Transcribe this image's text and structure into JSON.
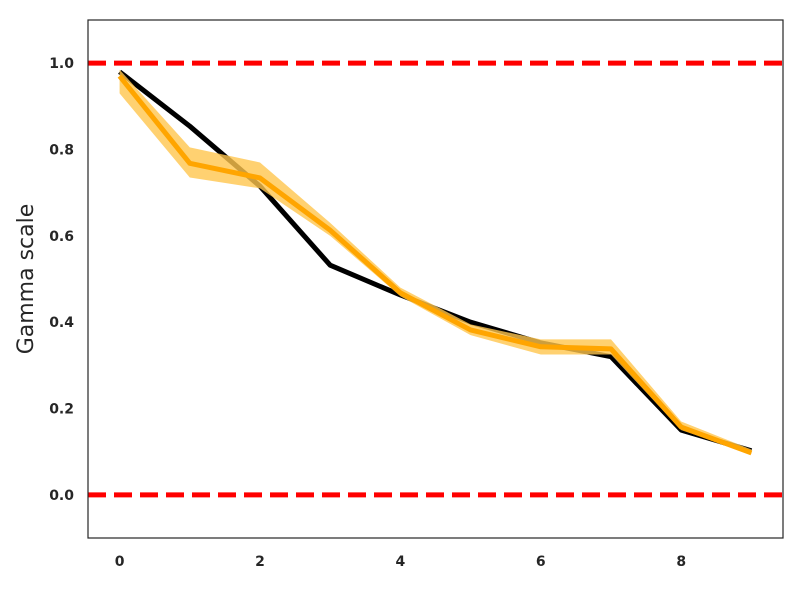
{
  "chart_data": {
    "type": "line",
    "ylabel": "Gamma scale",
    "x": [
      0,
      1,
      2,
      3,
      4,
      5,
      6,
      7,
      8,
      9
    ],
    "series": [
      {
        "color": "#000000",
        "values": [
          0.98,
          0.854,
          0.715,
          0.532,
          0.463,
          0.4,
          0.352,
          0.32,
          0.15,
          0.102
        ]
      },
      {
        "color": "#ffa500",
        "band_color": "#ffc54d",
        "values": [
          0.97,
          0.768,
          0.734,
          0.613,
          0.468,
          0.382,
          0.343,
          0.338,
          0.157,
          0.097
        ],
        "lower": [
          0.93,
          0.735,
          0.71,
          0.6,
          0.46,
          0.37,
          0.325,
          0.325,
          0.15,
          0.095
        ],
        "upper": [
          0.985,
          0.805,
          0.77,
          0.63,
          0.48,
          0.395,
          0.36,
          0.36,
          0.17,
          0.105
        ]
      }
    ],
    "hlines": [
      {
        "value": 1.0,
        "color": "#ff0000"
      },
      {
        "value": 0.0,
        "color": "#ff0000"
      }
    ],
    "xlim": [
      -0.45,
      9.45
    ],
    "ylim": [
      -0.1,
      1.1
    ],
    "xticks": [
      0,
      2,
      4,
      6,
      8
    ],
    "yticks": [
      {
        "value": 0.0,
        "label": "0.0"
      },
      0.2,
      0.4,
      0.6,
      0.8,
      {
        "value": 1.0,
        "label": "1.0"
      }
    ],
    "grid": false
  }
}
